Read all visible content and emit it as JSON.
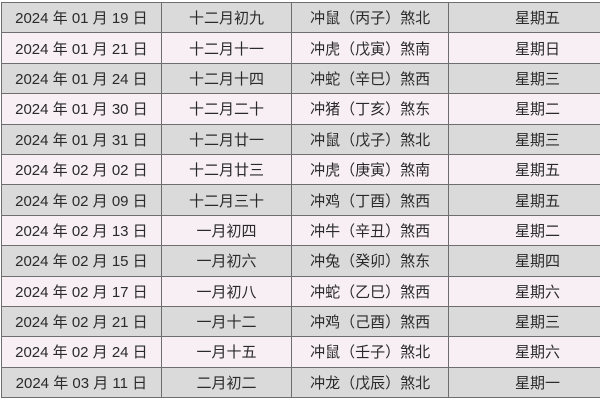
{
  "rows": [
    {
      "date": "2024 年 01 月 19 日",
      "lunar": "十二月初九",
      "clash": "冲鼠（丙子）煞北",
      "weekday": "星期五"
    },
    {
      "date": "2024 年 01 月 21 日",
      "lunar": "十二月十一",
      "clash": "冲虎（戊寅）煞南",
      "weekday": "星期日"
    },
    {
      "date": "2024 年 01 月 24 日",
      "lunar": "十二月十四",
      "clash": "冲蛇（辛巳）煞西",
      "weekday": "星期三"
    },
    {
      "date": "2024 年 01 月 30 日",
      "lunar": "十二月二十",
      "clash": "冲猪（丁亥）煞东",
      "weekday": "星期二"
    },
    {
      "date": "2024 年 01 月 31 日",
      "lunar": "十二月廿一",
      "clash": "冲鼠（戊子）煞北",
      "weekday": "星期三"
    },
    {
      "date": "2024 年 02 月 02 日",
      "lunar": "十二月廿三",
      "clash": "冲虎（庚寅）煞南",
      "weekday": "星期五"
    },
    {
      "date": "2024 年 02 月 09 日",
      "lunar": "十二月三十",
      "clash": "冲鸡（丁酉）煞西",
      "weekday": "星期五"
    },
    {
      "date": "2024 年 02 月 13 日",
      "lunar": "一月初四",
      "clash": "冲牛（辛丑）煞西",
      "weekday": "星期二"
    },
    {
      "date": "2024 年 02 月 15 日",
      "lunar": "一月初六",
      "clash": "冲兔（癸卯）煞东",
      "weekday": "星期四"
    },
    {
      "date": "2024 年 02 月 17 日",
      "lunar": "一月初八",
      "clash": "冲蛇（乙巳）煞西",
      "weekday": "星期六"
    },
    {
      "date": "2024 年 02 月 21 日",
      "lunar": "一月十二",
      "clash": "冲鸡（己酉）煞西",
      "weekday": "星期三"
    },
    {
      "date": "2024 年 02 月 24 日",
      "lunar": "一月十五",
      "clash": "冲鼠（壬子）煞北",
      "weekday": "星期六"
    },
    {
      "date": "2024 年 03 月 11 日",
      "lunar": "二月初二",
      "clash": "冲龙（戊辰）煞北",
      "weekday": "星期一"
    }
  ]
}
